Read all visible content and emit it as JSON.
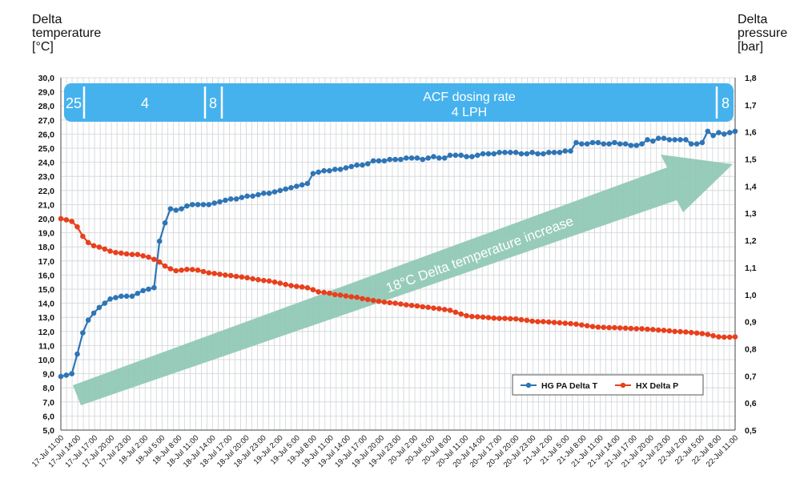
{
  "left_axis_title": "Delta\ntemperature\n[°C]",
  "right_axis_title": "Delta\npressure\n[bar]",
  "colors": {
    "t_series": "#2e75b6",
    "p_series": "#e8401c",
    "band": "#45b2ee",
    "arrow": "#8fc8b4",
    "grid": "#cfd3d8"
  },
  "band": {
    "segments": [
      "25",
      "4",
      "8",
      "ACF dosing rate",
      "4 LPH",
      "8"
    ]
  },
  "arrow_label": "18°C Delta temperature increase",
  "legend": {
    "placement": "bottom-right",
    "items": [
      "HG PA Delta T",
      "HX Delta P"
    ]
  },
  "chart_data": {
    "type": "line",
    "title": "",
    "x_tick_labels": [
      "17-Jul 11:00",
      "17-Jul 14:00",
      "17-Jul 17:00",
      "17-Jul 20:00",
      "17-Jul 23:00",
      "18-Jul 2:00",
      "18-Jul 5:00",
      "18-Jul 8:00",
      "18-Jul 11:00",
      "18-Jul 14:00",
      "18-Jul 17:00",
      "18-Jul 20:00",
      "18-Jul 23:00",
      "19-Jul 2:00",
      "19-Jul 5:00",
      "19-Jul 8:00",
      "19-Jul 11:00",
      "19-Jul 14:00",
      "19-Jul 17:00",
      "19-Jul 20:00",
      "19-Jul 23:00",
      "20-Jul 2:00",
      "20-Jul 5:00",
      "20-Jul 8:00",
      "20-Jul 11:00",
      "20-Jul 14:00",
      "20-Jul 17:00",
      "20-Jul 20:00",
      "20-Jul 23:00",
      "21-Jul 2:00",
      "21-Jul 5:00",
      "21-Jul 8:00",
      "21-Jul 11:00",
      "21-Jul 14:00",
      "21-Jul 17:00",
      "21-Jul 20:00",
      "21-Jul 23:00",
      "22-Jul 2:00",
      "22-Jul 5:00",
      "22-Jul 8:00",
      "22-Jul 11:00"
    ],
    "y_left": {
      "min": 5.0,
      "max": 30.0,
      "step": 1.0,
      "decimals": 1
    },
    "y_right": {
      "min": 0.5,
      "max": 1.8,
      "step": 0.1,
      "decimals": 1
    },
    "grid": true,
    "series": [
      {
        "name": "HG PA Delta T",
        "axis": "left",
        "values": [
          8.8,
          8.9,
          9.0,
          10.4,
          11.9,
          12.8,
          13.3,
          13.7,
          14.0,
          14.3,
          14.4,
          14.5,
          14.5,
          14.5,
          14.7,
          14.9,
          15.0,
          15.1,
          18.4,
          19.7,
          20.7,
          20.6,
          20.7,
          20.9,
          21.0,
          21.0,
          21.0,
          21.0,
          21.1,
          21.2,
          21.3,
          21.4,
          21.4,
          21.5,
          21.6,
          21.6,
          21.7,
          21.8,
          21.8,
          21.9,
          22.0,
          22.1,
          22.2,
          22.3,
          22.4,
          22.5,
          23.2,
          23.3,
          23.4,
          23.4,
          23.5,
          23.5,
          23.6,
          23.7,
          23.8,
          23.8,
          23.9,
          24.1,
          24.1,
          24.1,
          24.2,
          24.2,
          24.2,
          24.3,
          24.3,
          24.3,
          24.2,
          24.3,
          24.4,
          24.3,
          24.3,
          24.5,
          24.5,
          24.5,
          24.4,
          24.4,
          24.5,
          24.6,
          24.6,
          24.6,
          24.7,
          24.7,
          24.7,
          24.7,
          24.6,
          24.6,
          24.7,
          24.6,
          24.6,
          24.7,
          24.7,
          24.7,
          24.8,
          24.8,
          25.4,
          25.3,
          25.3,
          25.4,
          25.4,
          25.3,
          25.3,
          25.4,
          25.3,
          25.3,
          25.2,
          25.2,
          25.3,
          25.6,
          25.5,
          25.7,
          25.7,
          25.6,
          25.6,
          25.6,
          25.6,
          25.3,
          25.3,
          25.4,
          26.2,
          25.9,
          26.1,
          26.0,
          26.1,
          26.2
        ]
      },
      {
        "name": "HX Delta P",
        "axis": "right",
        "values": [
          1.28,
          1.276,
          1.27,
          1.25,
          1.215,
          1.192,
          1.18,
          1.175,
          1.168,
          1.16,
          1.155,
          1.153,
          1.15,
          1.148,
          1.148,
          1.143,
          1.138,
          1.13,
          1.12,
          1.105,
          1.095,
          1.088,
          1.09,
          1.093,
          1.092,
          1.09,
          1.085,
          1.08,
          1.078,
          1.075,
          1.072,
          1.07,
          1.067,
          1.065,
          1.062,
          1.058,
          1.055,
          1.052,
          1.05,
          1.046,
          1.042,
          1.037,
          1.033,
          1.03,
          1.028,
          1.025,
          1.018,
          1.01,
          1.008,
          1.005,
          1.0,
          0.998,
          0.995,
          0.992,
          0.99,
          0.985,
          0.982,
          0.978,
          0.975,
          0.972,
          0.97,
          0.968,
          0.965,
          0.962,
          0.96,
          0.958,
          0.955,
          0.953,
          0.95,
          0.948,
          0.945,
          0.942,
          0.935,
          0.928,
          0.922,
          0.919,
          0.918,
          0.917,
          0.915,
          0.913,
          0.912,
          0.912,
          0.911,
          0.91,
          0.907,
          0.905,
          0.902,
          0.9,
          0.9,
          0.899,
          0.897,
          0.896,
          0.894,
          0.893,
          0.891,
          0.888,
          0.885,
          0.882,
          0.88,
          0.879,
          0.878,
          0.878,
          0.877,
          0.876,
          0.875,
          0.874,
          0.874,
          0.872,
          0.871,
          0.869,
          0.868,
          0.866,
          0.864,
          0.863,
          0.862,
          0.86,
          0.858,
          0.856,
          0.853,
          0.848,
          0.844,
          0.843,
          0.843,
          0.844
        ]
      }
    ]
  }
}
